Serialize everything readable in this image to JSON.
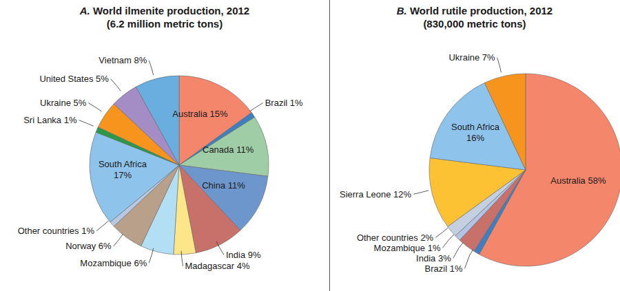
{
  "chart_data": [
    {
      "type": "pie",
      "title": "A. World ilmenite production, 2012",
      "subtitle": "(6.2 million metric tons)",
      "categories": [
        "Australia",
        "Brazil",
        "Canada",
        "China",
        "India",
        "Madagascar",
        "Mozambique",
        "Norway",
        "Other countries",
        "South Africa",
        "Sri Lanka",
        "Ukraine",
        "United States",
        "Vietnam"
      ],
      "values": [
        15,
        1,
        11,
        11,
        9,
        4,
        6,
        6,
        1,
        17,
        1,
        5,
        5,
        8
      ],
      "value_labels": [
        "Australia 15%",
        "Brazil 1%",
        "Canada 11%",
        "China 11%",
        "India 9%",
        "Madagascar 4%",
        "Mozambique 6%",
        "Norway 6%",
        "Other countries 1%",
        "South Africa 17%",
        "Sri Lanka 1%",
        "Ukraine 5%",
        "United States 5%",
        "Vietnam 8%"
      ],
      "colors": [
        "#f4866b",
        "#3f7fc0",
        "#9fcea6",
        "#6d97cc",
        "#c8706a",
        "#fde58a",
        "#b3dff5",
        "#b9a08a",
        "#b8c8e0",
        "#8ec4ec",
        "#2a9a4a",
        "#f7941d",
        "#a48cc4",
        "#6aaee0"
      ],
      "data_labels": true
    },
    {
      "type": "pie",
      "title": "B. World rutile production, 2012",
      "subtitle": "(830,000 metric tons)",
      "categories": [
        "Australia",
        "Brazil",
        "India",
        "Mozambique",
        "Other countries",
        "Sierra Leone",
        "South Africa",
        "Ukraine"
      ],
      "values": [
        58,
        1,
        3,
        1,
        2,
        12,
        16,
        7
      ],
      "value_labels": [
        "Australia 58%",
        "Brazil 1%",
        "India 3%",
        "Mozambique 1%",
        "Other countries 2%",
        "Sierra Leone 12%",
        "South Africa 16%",
        "Ukraine 7%"
      ],
      "colors": [
        "#f4866b",
        "#3f7fc0",
        "#c8706a",
        "#b3c4e6",
        "#c4cfe0",
        "#fcc234",
        "#8ec4ec",
        "#f7941d"
      ],
      "data_labels": true
    }
  ]
}
